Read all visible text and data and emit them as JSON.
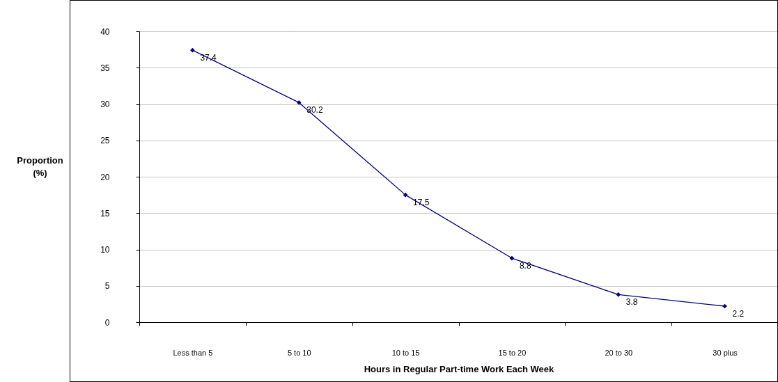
{
  "chart_data": {
    "type": "line",
    "xlabel": "Hours in Regular Part-time Work Each Week",
    "ylabel": "Proportion (%)",
    "categories": [
      "Less than 5",
      "5 to 10",
      "10 to 15",
      "15 to 20",
      "20 to 30",
      "30 plus"
    ],
    "series": [
      {
        "color": "#000080",
        "values": [
          37.4,
          30.2,
          17.5,
          8.8,
          3.8,
          2.2
        ]
      }
    ],
    "ylim": [
      0,
      40
    ],
    "yticks": [
      0,
      5,
      10,
      15,
      20,
      25,
      30,
      35,
      40
    ],
    "grid": "y",
    "marker": "diamond",
    "line_style": "solid",
    "data_labels": true
  }
}
